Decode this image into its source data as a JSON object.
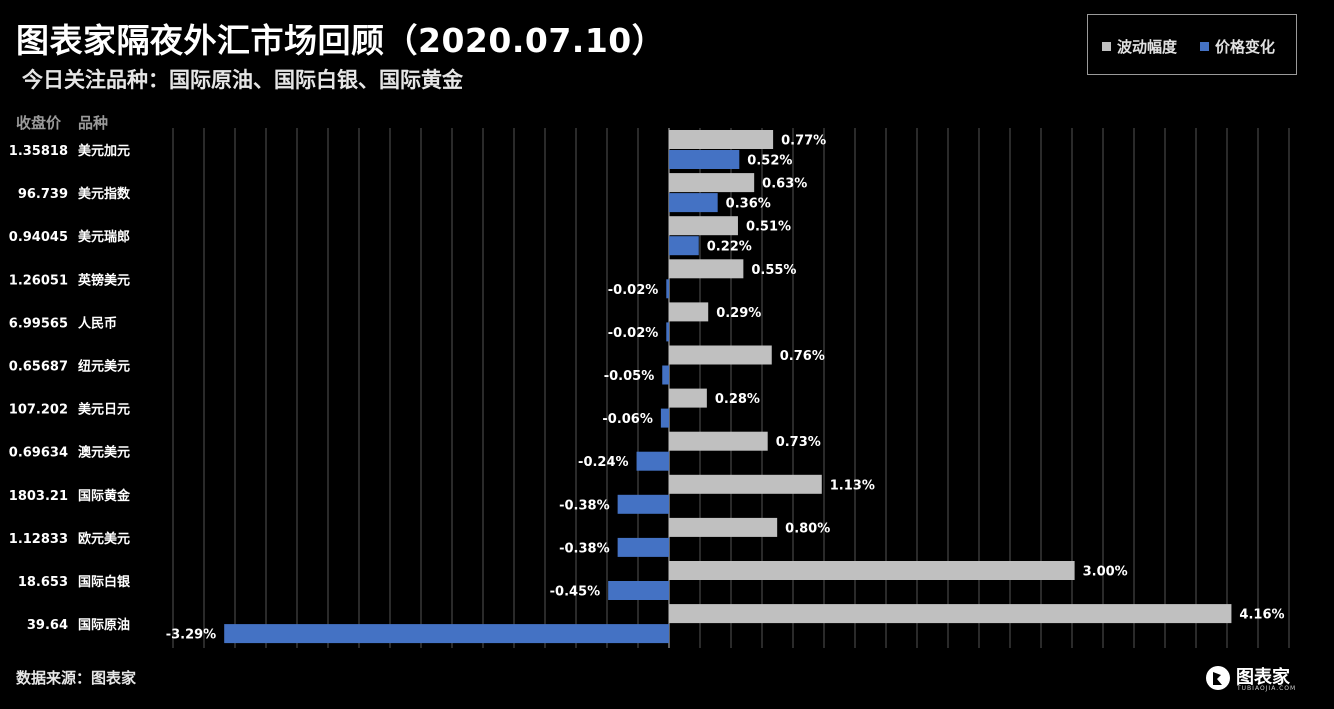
{
  "title": "图表家隔夜外汇市场回顾（2020.07.10）",
  "subtitle": "今日关注品种：国际原油、国际白银、国际黄金",
  "headers": {
    "price": "收盘价",
    "name": "品种"
  },
  "legend": [
    {
      "label": "波动幅度",
      "color": "#c0c0c0"
    },
    {
      "label": "价格变化",
      "color": "#4472c4"
    }
  ],
  "source": "数据来源：图表家",
  "logo": {
    "text": "图表家",
    "sub": "TUBIAOJIA.COM"
  },
  "chart_data": {
    "type": "bar",
    "orientation": "horizontal",
    "categories": [
      "美元加元",
      "美元指数",
      "美元瑞郎",
      "英镑美元",
      "人民币",
      "纽元美元",
      "美元日元",
      "澳元美元",
      "国际黄金",
      "欧元美元",
      "国际白银",
      "国际原油"
    ],
    "close_prices": [
      "1.35818",
      "96.739",
      "0.94045",
      "1.26051",
      "6.99565",
      "0.65687",
      "107.202",
      "0.69634",
      "1803.21",
      "1.12833",
      "18.653",
      "39.64"
    ],
    "series": [
      {
        "name": "波动幅度",
        "values": [
          0.77,
          0.63,
          0.51,
          0.55,
          0.29,
          0.76,
          0.28,
          0.73,
          1.13,
          0.8,
          3.0,
          4.16
        ],
        "labels": [
          "0.77%",
          "0.63%",
          "0.51%",
          "0.55%",
          "0.29%",
          "0.76%",
          "0.28%",
          "0.73%",
          "1.13%",
          "0.80%",
          "3.00%",
          "4.16%"
        ]
      },
      {
        "name": "价格变化",
        "values": [
          0.52,
          0.36,
          0.22,
          -0.02,
          -0.02,
          -0.05,
          -0.06,
          -0.24,
          -0.38,
          -0.38,
          -0.45,
          -3.29
        ],
        "labels": [
          "0.52%",
          "0.36%",
          "0.22%",
          "-0.02%",
          "-0.02%",
          "-0.05%",
          "-0.06%",
          "-0.24%",
          "-0.38%",
          "-0.38%",
          "-0.45%",
          "-3.29%"
        ]
      }
    ],
    "xlim": [
      -4.0,
      4.6
    ],
    "grid": true,
    "legend_position": "top-right"
  }
}
